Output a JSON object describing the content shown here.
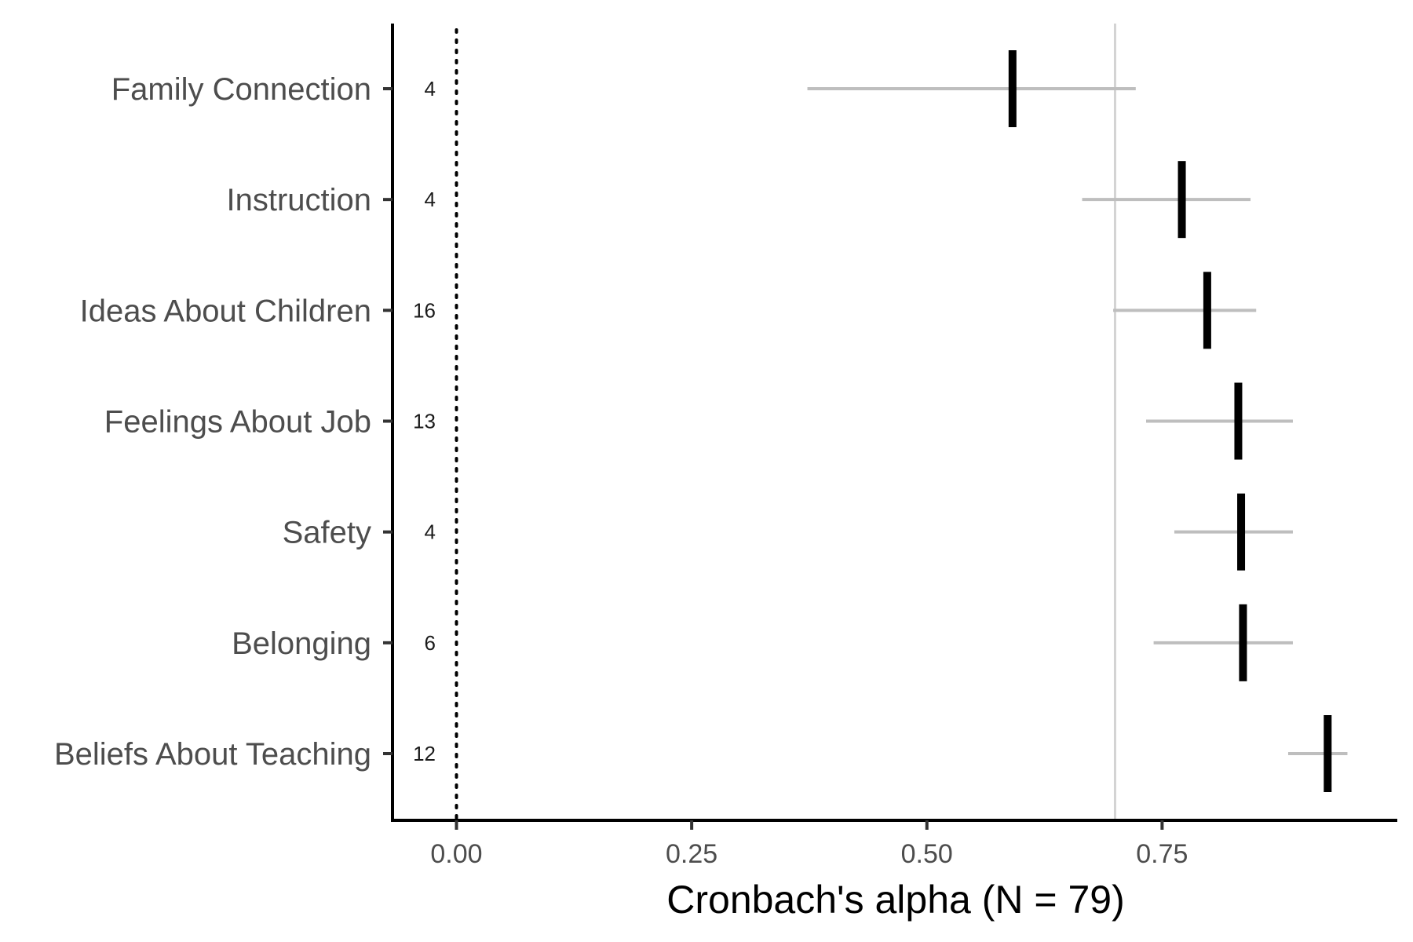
{
  "chart_data": {
    "type": "forest",
    "xlabel": "Cronbach's alpha (N = 79)",
    "xlim": [
      -0.068,
      1.0
    ],
    "xticks": [
      0.0,
      0.25,
      0.5,
      0.75
    ],
    "xtick_labels": [
      "0.00",
      "0.25",
      "0.50",
      "0.75"
    ],
    "reference_line": 0.7,
    "zero_line": 0.0,
    "grid": false,
    "colors": {
      "estimate": "#000000",
      "interval": "#bebebe",
      "reference": "#d3d3d3",
      "axis": "#000000"
    },
    "rows": [
      {
        "label": "Family Connection",
        "n_items": "4",
        "alpha": 0.591,
        "lower": 0.373,
        "upper": 0.722
      },
      {
        "label": "Instruction",
        "n_items": "4",
        "alpha": 0.771,
        "lower": 0.665,
        "upper": 0.844
      },
      {
        "label": "Ideas About Children",
        "n_items": "16",
        "alpha": 0.798,
        "lower": 0.698,
        "upper": 0.85
      },
      {
        "label": "Feelings About Job",
        "n_items": "13",
        "alpha": 0.831,
        "lower": 0.733,
        "upper": 0.889
      },
      {
        "label": "Safety",
        "n_items": "4",
        "alpha": 0.834,
        "lower": 0.763,
        "upper": 0.889
      },
      {
        "label": "Belonging",
        "n_items": "6",
        "alpha": 0.836,
        "lower": 0.741,
        "upper": 0.889
      },
      {
        "label": "Beliefs About Teaching",
        "n_items": "12",
        "alpha": 0.926,
        "lower": 0.884,
        "upper": 0.947
      }
    ]
  }
}
